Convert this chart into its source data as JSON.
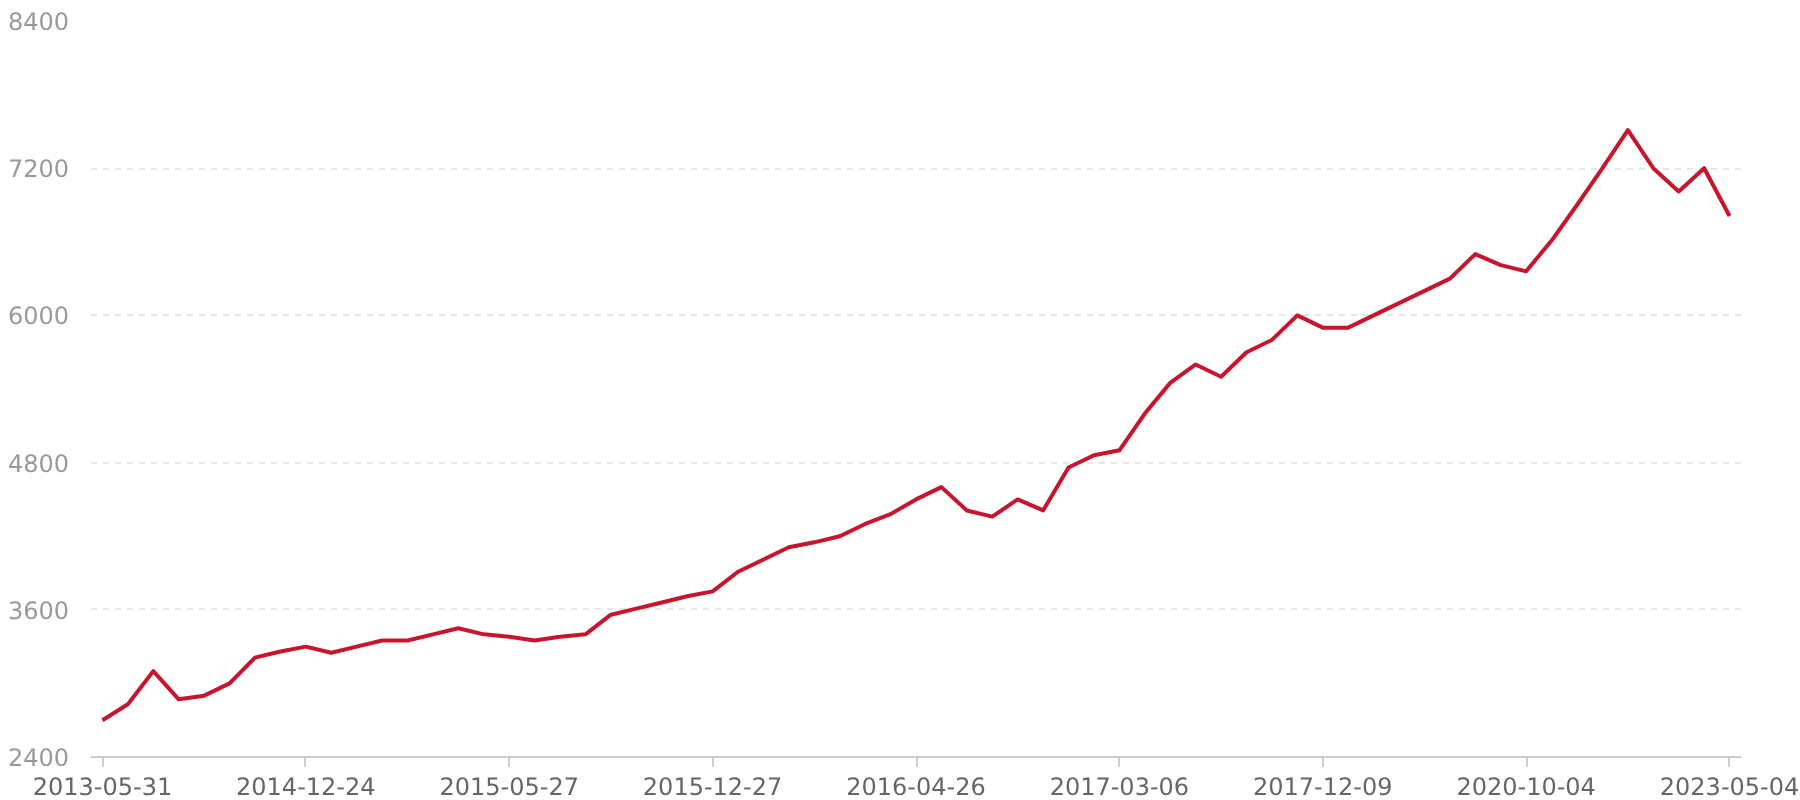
{
  "chart_data": {
    "type": "line",
    "categories": [
      "2013-05-31",
      null,
      null,
      null,
      null,
      null,
      null,
      null,
      "2014-12-24",
      null,
      null,
      null,
      null,
      null,
      null,
      null,
      "2015-05-27",
      null,
      null,
      null,
      null,
      null,
      null,
      null,
      "2015-12-27",
      null,
      null,
      null,
      null,
      null,
      null,
      null,
      "2016-04-26",
      null,
      null,
      null,
      null,
      null,
      null,
      null,
      "2017-03-06",
      null,
      null,
      null,
      null,
      null,
      null,
      null,
      "2017-12-09",
      null,
      null,
      null,
      null,
      null,
      null,
      null,
      "2020-10-04",
      null,
      null,
      null,
      null,
      null,
      null,
      null,
      "2023-05-04"
    ],
    "series": [
      {
        "color": "#c8152d",
        "values": [
          2700,
          2830,
          3100,
          2870,
          2900,
          3000,
          3210,
          3260,
          3300,
          3250,
          3300,
          3350,
          3350,
          3400,
          3450,
          3400,
          3380,
          3350,
          3380,
          3400,
          3560,
          3610,
          3660,
          3710,
          3750,
          3910,
          4010,
          4110,
          4150,
          4200,
          4300,
          4380,
          4500,
          4600,
          4410,
          4360,
          4500,
          4410,
          4760,
          4860,
          4900,
          5200,
          5450,
          5600,
          5500,
          5700,
          5800,
          6000,
          5900,
          5900,
          6000,
          6100,
          6200,
          6300,
          6500,
          6410,
          6360,
          6610,
          6900,
          7200,
          7510,
          7200,
          7010,
          7200,
          6810
        ]
      }
    ],
    "ylim": [
      2400,
      8400
    ],
    "yticks": [
      2400,
      3600,
      4800,
      6000,
      7200,
      8400
    ],
    "grid": "y",
    "line_style": "solid",
    "marker": "none"
  }
}
